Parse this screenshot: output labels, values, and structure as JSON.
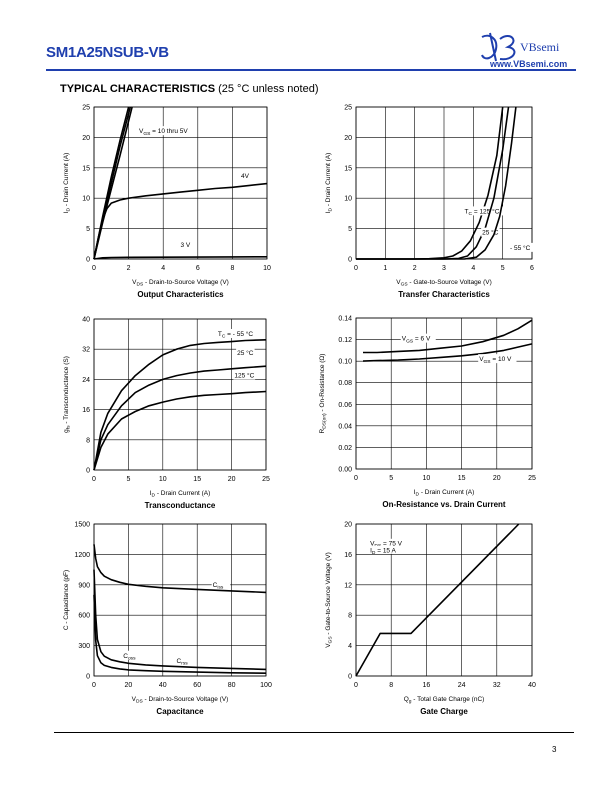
{
  "header": {
    "part_number": "SM1A25NSUB-VB",
    "brand": "VBsemi",
    "website": "www.VBsemi.com"
  },
  "section": {
    "title": "TYPICAL CHARACTERISTICS",
    "note": "(25 °C unless noted)"
  },
  "footer": {
    "page_number": "3"
  },
  "chart_data": [
    {
      "id": "output",
      "type": "line",
      "title": "Output Characteristics",
      "xlabel": "V_DS - Drain-to-Source Voltage (V)",
      "ylabel": "I_D - Drain Current (A)",
      "xlim": [
        0,
        10
      ],
      "ylim": [
        0,
        25
      ],
      "xticks": [
        0,
        2,
        4,
        6,
        8,
        10
      ],
      "yticks": [
        0,
        5,
        10,
        15,
        20,
        25
      ],
      "grid": true,
      "series": [
        {
          "name": "V_GS = 10 thru 5V",
          "x": [
            0,
            0.5,
            1,
            1.5,
            2
          ],
          "y": [
            0,
            7,
            13.5,
            19.5,
            25
          ]
        },
        {
          "name": "",
          "x": [
            0,
            0.5,
            1,
            1.5,
            2.1
          ],
          "y": [
            0,
            6.5,
            12.5,
            18.5,
            25
          ]
        },
        {
          "name": "",
          "x": [
            0,
            0.5,
            1,
            1.5,
            2.2
          ],
          "y": [
            0,
            6,
            11.5,
            17,
            25
          ]
        },
        {
          "name": "4V",
          "x": [
            0,
            0.25,
            0.5,
            0.75,
            1,
            1.5,
            2,
            3,
            4,
            5,
            6,
            7,
            8,
            9,
            10
          ],
          "y": [
            0,
            3.5,
            6.5,
            8.3,
            9.2,
            9.7,
            10,
            10.4,
            10.7,
            11,
            11.3,
            11.6,
            11.8,
            12.1,
            12.4
          ]
        },
        {
          "name": "3 V",
          "x": [
            0,
            0.5,
            1,
            2,
            4,
            6,
            8,
            10
          ],
          "y": [
            0,
            0.2,
            0.25,
            0.28,
            0.3,
            0.32,
            0.34,
            0.36
          ]
        }
      ]
    },
    {
      "id": "transfer",
      "type": "line",
      "title": "Transfer Characteristics",
      "xlabel": "V_GS - Gate-to-Source Voltage (V)",
      "ylabel": "I_D - Drain Current (A)",
      "xlim": [
        0,
        6
      ],
      "ylim": [
        0,
        25
      ],
      "xticks": [
        0,
        1,
        2,
        3,
        4,
        5,
        6
      ],
      "yticks": [
        0,
        5,
        10,
        15,
        20,
        25
      ],
      "grid": true,
      "series": [
        {
          "name": "T_C = 125 °C",
          "x": [
            0,
            2,
            2.5,
            3,
            3.3,
            3.6,
            3.9,
            4.2,
            4.5,
            4.8,
            5.0
          ],
          "y": [
            0,
            0,
            0.05,
            0.2,
            0.5,
            1.3,
            3,
            6,
            10.5,
            17,
            25
          ]
        },
        {
          "name": "25 °C",
          "x": [
            0,
            3,
            3.5,
            3.8,
            4.1,
            4.4,
            4.7,
            5.0,
            5.2
          ],
          "y": [
            0,
            0,
            0.1,
            0.5,
            2,
            5,
            10,
            18,
            25
          ]
        },
        {
          "name": "- 55 °C",
          "x": [
            0,
            3.7,
            4.1,
            4.4,
            4.7,
            4.9,
            5.1,
            5.3,
            5.45
          ],
          "y": [
            0,
            0,
            0.3,
            1.5,
            4,
            7,
            12,
            19,
            25
          ]
        }
      ]
    },
    {
      "id": "transconductance",
      "type": "line",
      "title": "Transconductance",
      "xlabel": "I_D - Drain Current (A)",
      "ylabel": "g_fs - Transconductance (S)",
      "xlim": [
        0,
        25
      ],
      "ylim": [
        0,
        40
      ],
      "xticks": [
        0,
        5,
        10,
        15,
        20,
        25
      ],
      "yticks": [
        0,
        8,
        16,
        24,
        32,
        40
      ],
      "grid": true,
      "series": [
        {
          "name": "T_C = - 55 °C",
          "x": [
            0,
            1,
            2,
            4,
            6,
            8,
            10,
            12,
            14,
            16,
            18,
            20,
            22,
            25
          ],
          "y": [
            0,
            10,
            15,
            21,
            25,
            28,
            30.5,
            32,
            33,
            33.5,
            33.8,
            34,
            34.3,
            34.5
          ]
        },
        {
          "name": "25 °C",
          "x": [
            0,
            1,
            2,
            4,
            6,
            8,
            10,
            12,
            14,
            16,
            18,
            20,
            22,
            25
          ],
          "y": [
            0,
            8,
            12,
            17,
            20.5,
            22.5,
            24,
            25,
            25.7,
            26.2,
            26.5,
            26.8,
            27.1,
            27.5
          ]
        },
        {
          "name": "125 °C",
          "x": [
            0,
            1,
            2,
            4,
            6,
            8,
            10,
            12,
            14,
            16,
            18,
            20,
            22,
            25
          ],
          "y": [
            0,
            6,
            9.5,
            13.5,
            15.5,
            17,
            18,
            18.8,
            19.4,
            19.8,
            20,
            20.2,
            20.5,
            20.8
          ]
        }
      ]
    },
    {
      "id": "on_resistance",
      "type": "line",
      "title": "On-Resistance vs. Drain Current",
      "xlabel": "I_D - Drain Current (A)",
      "ylabel": "R_DS(on) - On-Resistance (Ω)",
      "xlim": [
        0,
        25
      ],
      "ylim": [
        0,
        0.14
      ],
      "xticks": [
        0,
        5,
        10,
        15,
        20,
        25
      ],
      "yticks": [
        0.0,
        0.02,
        0.04,
        0.06,
        0.08,
        0.1,
        0.12,
        0.14
      ],
      "grid": true,
      "series": [
        {
          "name": "V_GS = 6 V",
          "x": [
            1,
            3,
            6,
            9,
            12,
            15,
            18,
            21,
            23,
            25
          ],
          "y": [
            0.108,
            0.108,
            0.109,
            0.11,
            0.112,
            0.114,
            0.118,
            0.124,
            0.13,
            0.138
          ]
        },
        {
          "name": "V_GS = 10 V",
          "x": [
            1,
            3,
            6,
            9,
            12,
            15,
            18,
            21,
            23,
            25
          ],
          "y": [
            0.1,
            0.1005,
            0.101,
            0.102,
            0.1035,
            0.105,
            0.107,
            0.11,
            0.113,
            0.116
          ]
        }
      ]
    },
    {
      "id": "capacitance",
      "type": "line",
      "title": "Capacitance",
      "xlabel": "V_DS - Drain-to-Source Voltage (V)",
      "ylabel": "C - Capacitance (pF)",
      "xlim": [
        0,
        100
      ],
      "ylim": [
        0,
        1500
      ],
      "xticks": [
        0,
        20,
        40,
        60,
        80,
        100
      ],
      "yticks": [
        0,
        300,
        600,
        900,
        1200,
        1500
      ],
      "grid": true,
      "series": [
        {
          "name": "C_iss",
          "x": [
            0,
            1,
            2,
            4,
            6,
            10,
            15,
            20,
            30,
            40,
            60,
            80,
            100
          ],
          "y": [
            1300,
            1160,
            1080,
            1020,
            985,
            950,
            925,
            905,
            885,
            870,
            855,
            840,
            825
          ]
        },
        {
          "name": "C_oss",
          "x": [
            0,
            1,
            2,
            4,
            6,
            10,
            15,
            20,
            30,
            40,
            60,
            80,
            100
          ],
          "y": [
            1050,
            600,
            360,
            240,
            195,
            160,
            140,
            125,
            110,
            100,
            85,
            75,
            65
          ]
        },
        {
          "name": "C_rss",
          "x": [
            0,
            1,
            2,
            4,
            6,
            10,
            15,
            20,
            30,
            40,
            60,
            80,
            100
          ],
          "y": [
            800,
            350,
            200,
            130,
            105,
            85,
            70,
            60,
            52,
            46,
            38,
            32,
            28
          ]
        }
      ]
    },
    {
      "id": "gate_charge",
      "type": "line",
      "title": "Gate Charge",
      "xlabel": "Q_g - Total Gate Charge (nC)",
      "ylabel": "V_GS - Gate-to-Source Voltage (V)",
      "xlim": [
        0,
        40
      ],
      "ylim": [
        0,
        20
      ],
      "xticks": [
        0,
        8,
        16,
        24,
        32,
        40
      ],
      "yticks": [
        0,
        4,
        8,
        12,
        16,
        20
      ],
      "grid": true,
      "annotations": [
        "V_DS = 75 V",
        "I_D = 15 A"
      ],
      "series": [
        {
          "name": "",
          "x": [
            0,
            5.5,
            12.5,
            37
          ],
          "y": [
            0,
            5.6,
            5.6,
            20
          ]
        }
      ]
    }
  ]
}
